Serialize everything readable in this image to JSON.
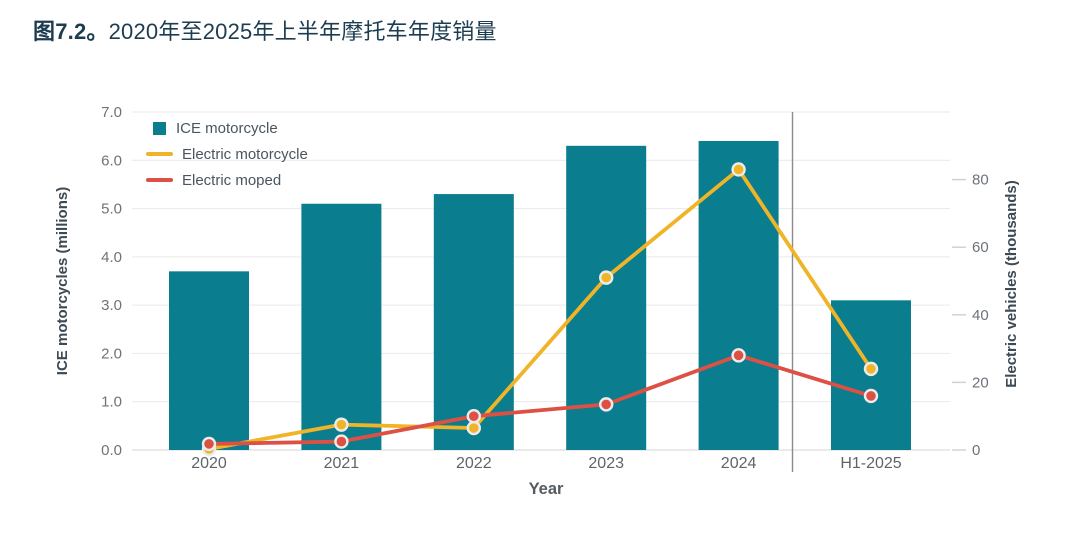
{
  "title": {
    "figure_label": "图7.2。",
    "text": "2020年至2025年上半年摩托车年度销量"
  },
  "chart_data": {
    "type": "combo-bar-line",
    "categories": [
      "2020",
      "2021",
      "2022",
      "2023",
      "2024",
      "H1-2025"
    ],
    "bar_series": {
      "name": "ICE motorcycle",
      "axis": "left",
      "color": "#0a7d8e",
      "values": [
        3.7,
        5.1,
        5.3,
        6.3,
        6.4,
        3.1
      ]
    },
    "line_series": [
      {
        "name": "Electric motorcycle",
        "axis": "right",
        "color": "#f0b429",
        "values": [
          0.3,
          7.5,
          6.5,
          51,
          83,
          24
        ]
      },
      {
        "name": "Electric moped",
        "axis": "right",
        "color": "#dd5145",
        "values": [
          1.8,
          2.5,
          10,
          13.5,
          28,
          16
        ]
      }
    ],
    "left_axis": {
      "label": "ICE motorcycles (millions)",
      "min": 0,
      "max": 7,
      "tick_step": 1,
      "tick_decimals": 1
    },
    "right_axis": {
      "label": "Electric vehicles (thousands)",
      "min": 0,
      "max": 100,
      "ticks": [
        0,
        20,
        40,
        60,
        80
      ]
    },
    "x_axis": {
      "label": "Year"
    },
    "separator_after_category": "2024",
    "grid": true,
    "legend_position": "top-left"
  }
}
